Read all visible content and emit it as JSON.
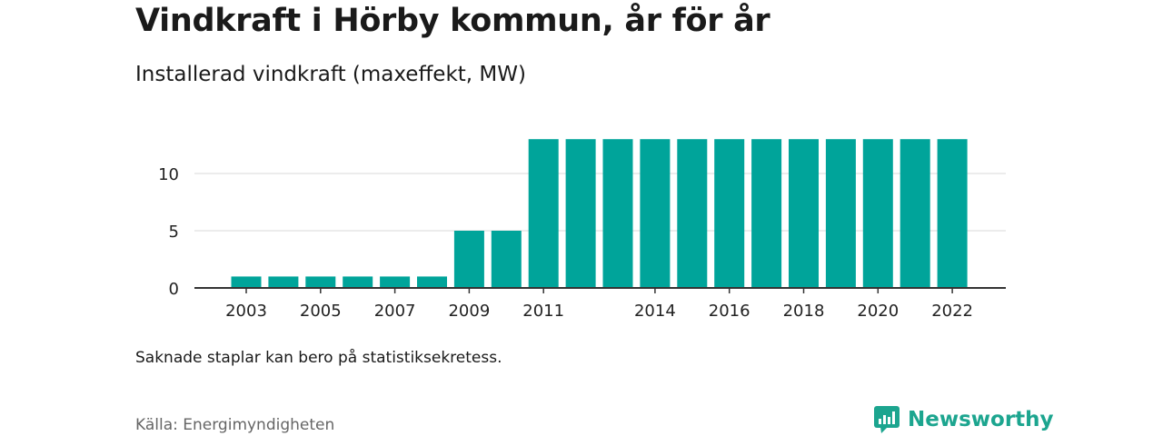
{
  "header": {
    "title": "Vindkraft i Hörby kommun, år för år",
    "subtitle": "Installerad vindkraft (maxeffekt, MW)"
  },
  "footer": {
    "note": "Saknade staplar kan bero på statistiksekretess.",
    "source": "Källa: Energimyndigheten",
    "brand": "Newsworthy"
  },
  "colors": {
    "bar": "#00a49a",
    "grid": "#d9d9d9",
    "axis": "#333333",
    "brand": "#1ca58f"
  },
  "chart_data": {
    "type": "bar",
    "categories": [
      "2003",
      "2004",
      "2005",
      "2006",
      "2007",
      "2008",
      "2009",
      "2010",
      "2011",
      "2012",
      "2013",
      "2014",
      "2015",
      "2016",
      "2017",
      "2018",
      "2019",
      "2020",
      "2021",
      "2022"
    ],
    "values": [
      1,
      1,
      1,
      1,
      1,
      1,
      5,
      5,
      13,
      13,
      13,
      13,
      13,
      13,
      13,
      13,
      13,
      13,
      13,
      13
    ],
    "x_tick_labels": [
      "2003",
      "2005",
      "2007",
      "2009",
      "2011",
      "2014",
      "2016",
      "2018",
      "2020",
      "2022"
    ],
    "y_ticks": [
      0,
      5,
      10
    ],
    "ylim": [
      0,
      14
    ],
    "title": "Vindkraft i Hörby kommun, år för år",
    "ylabel": "Installerad vindkraft (maxeffekt, MW)",
    "xlabel": "",
    "grid": true
  }
}
